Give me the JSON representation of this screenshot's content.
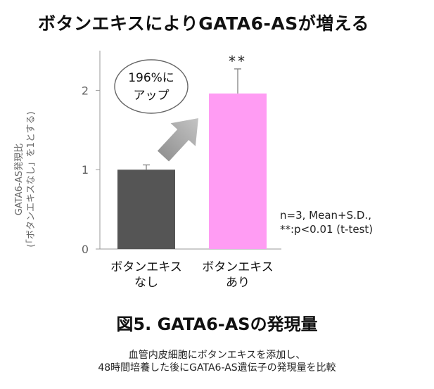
{
  "title": "ボタンエキスによりGATA6-ASが増える",
  "chart_data": {
    "type": "bar",
    "categories": [
      [
        "ボタンエキス",
        "なし"
      ],
      [
        "ボタンエキス",
        "あり"
      ]
    ],
    "values": [
      1.0,
      1.96
    ],
    "errors": [
      0.06,
      0.31
    ],
    "significance": [
      "",
      "**"
    ],
    "ylim": [
      0,
      2.5
    ],
    "yticks": [
      0,
      1,
      2
    ],
    "ylabel": [
      "GATA6-AS発現比",
      "(「ボタンエキスなし」を1とする)"
    ],
    "xlabel": "",
    "grid": false,
    "colors": [
      "#555555",
      "#ff9cf3"
    ],
    "annotation": {
      "text": [
        "196%に",
        "アップ"
      ],
      "arrow_color": "#a6a6a6"
    }
  },
  "note": [
    "n=3, Mean+S.D.,",
    "**:p<0.01 (t-test)"
  ],
  "figure_title": "図5. GATA6-ASの発現量",
  "caption": [
    "血管内皮細胞にボタンエキスを添加し、",
    "48時間培養した後にGATA6-AS遺伝子の発現量を比較"
  ]
}
